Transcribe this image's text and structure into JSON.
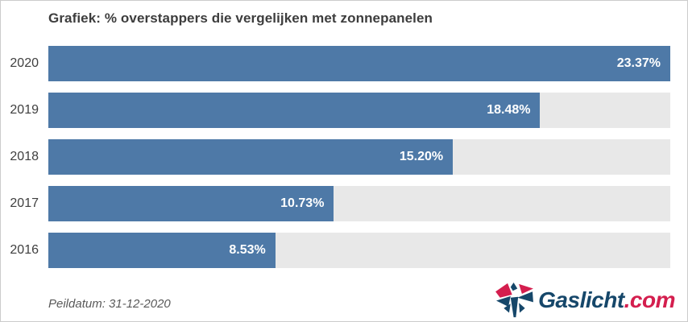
{
  "chart_data": {
    "type": "bar",
    "orientation": "horizontal",
    "title": "Grafiek: % overstappers die vergelijken met zonnepanelen",
    "categories": [
      "2020",
      "2019",
      "2018",
      "2017",
      "2016"
    ],
    "values": [
      23.37,
      18.48,
      15.2,
      10.73,
      8.53
    ],
    "value_labels": [
      "23.37%",
      "18.48%",
      "15.20%",
      "10.73%",
      "8.53%"
    ],
    "xlabel": "",
    "ylabel": "",
    "xlim": [
      0,
      23.37
    ],
    "grid": false,
    "legend": false,
    "bar_color": "#4e79a7",
    "track_color": "#e8e8e8"
  },
  "footer": {
    "peildatum": "Peildatum: 31-12-2020",
    "logo": {
      "brand": "Gaslicht",
      "tld": ".com",
      "brand_color": "#16476a",
      "tld_color": "#d41e4e",
      "icon": "gaslicht-pinwheel-icon"
    }
  },
  "colors": {
    "bar": "#4e79a7",
    "track": "#e8e8e8",
    "title_text": "#3d3d3d",
    "year_text": "#3f3f3f",
    "value_text": "#ffffff",
    "footnote_text": "#595959",
    "border": "#cccccc",
    "background": "#ffffff"
  }
}
